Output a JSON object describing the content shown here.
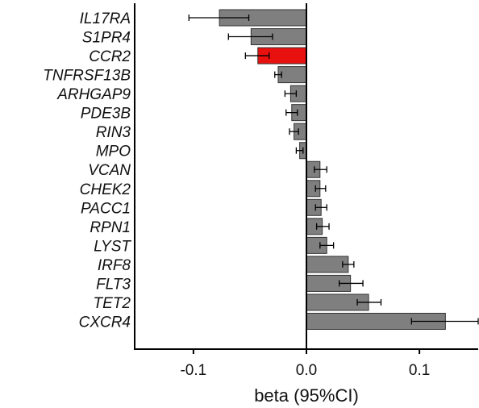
{
  "chart_data": {
    "type": "bar",
    "orientation": "horizontal",
    "title": "",
    "xlabel": "beta (95%CI)",
    "ylabel": "",
    "xlim": [
      -0.152,
      0.152
    ],
    "xticks": [
      -0.1,
      0.0,
      0.1
    ],
    "xtick_labels": [
      "-0.1",
      "0.0",
      "0.1"
    ],
    "categories": [
      "IL17RA",
      "S1PR4",
      "CCR2",
      "TNFRSF13B",
      "ARHGAP9",
      "PDE3B",
      "RIN3",
      "MPO",
      "VCAN",
      "CHEK2",
      "PACC1",
      "RPN1",
      "LYST",
      "IRF8",
      "FLT3",
      "TET2",
      "CXCR4"
    ],
    "values": [
      -0.077,
      -0.049,
      -0.043,
      -0.025,
      -0.014,
      -0.013,
      -0.011,
      -0.006,
      0.012,
      0.012,
      0.013,
      0.014,
      0.018,
      0.037,
      0.039,
      0.055,
      0.123
    ],
    "ci_low": [
      -0.104,
      -0.069,
      -0.054,
      -0.028,
      -0.019,
      -0.018,
      -0.015,
      -0.009,
      0.007,
      0.008,
      0.008,
      0.009,
      0.012,
      0.032,
      0.029,
      0.045,
      0.093
    ],
    "ci_high": [
      -0.051,
      -0.03,
      -0.033,
      -0.022,
      -0.009,
      -0.008,
      -0.007,
      -0.003,
      0.018,
      0.017,
      0.018,
      0.02,
      0.024,
      0.042,
      0.05,
      0.066,
      0.152
    ],
    "highlight": "CCR2",
    "colors": {
      "bar": "#7f7f7f",
      "highlight": "#e8110f",
      "axis": "#000000",
      "bar_edge": "#333333"
    },
    "grid": false,
    "legend": "none"
  }
}
